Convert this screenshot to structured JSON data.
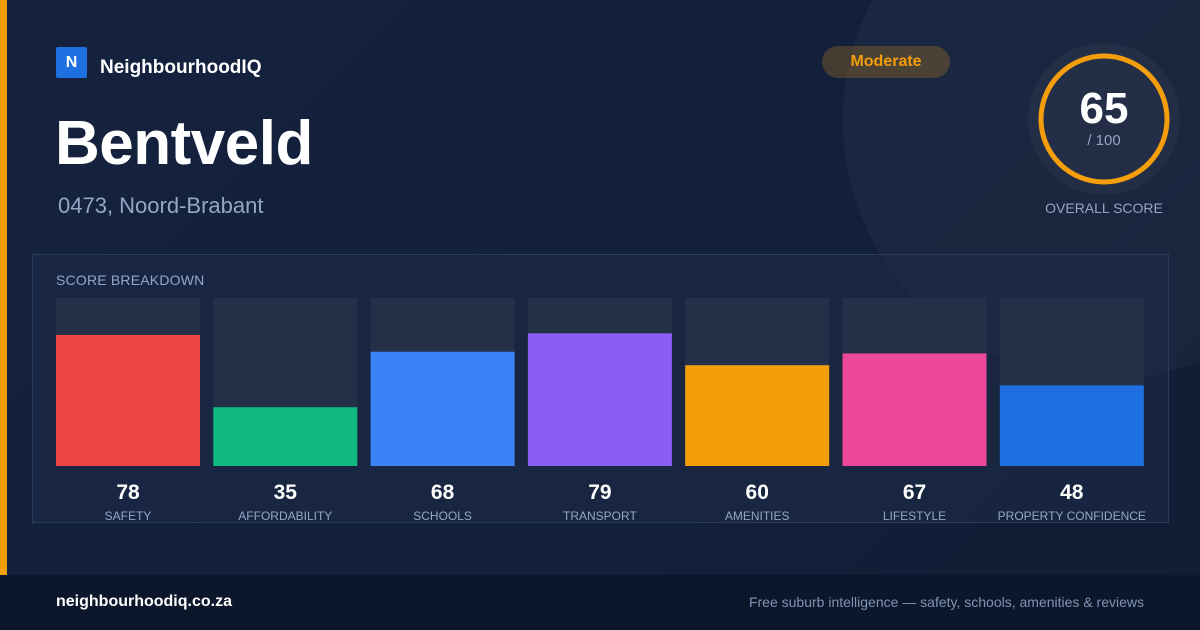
{
  "brand": {
    "logo_letter": "N",
    "name": "NeighbourhoodIQ"
  },
  "suburb": {
    "name": "Bentveld",
    "subtitle": "0473, Noord-Brabant"
  },
  "rating": {
    "label": "Moderate"
  },
  "overall": {
    "score": "65",
    "max_label": "/ 100",
    "caption": "OVERALL SCORE",
    "score_fraction": 0.65
  },
  "panel": {
    "title": "SCORE BREAKDOWN"
  },
  "colors": {
    "accent": "#f59e0b",
    "brand": "#1e6fe0",
    "track": "#233047"
  },
  "chart_data": {
    "type": "bar",
    "title": "SCORE BREAKDOWN",
    "categories": [
      "SAFETY",
      "AFFORDABILITY",
      "SCHOOLS",
      "TRANSPORT",
      "AMENITIES",
      "LIFESTYLE",
      "PROPERTY CONFIDENCE"
    ],
    "values": [
      78,
      35,
      68,
      79,
      60,
      67,
      48
    ],
    "colors": [
      "#ef4444",
      "#10b981",
      "#3b82f6",
      "#8b5cf6",
      "#f59e0b",
      "#ec4899",
      "#1e6fe0"
    ],
    "ylim": [
      0,
      100
    ],
    "grid": false,
    "legend": "none"
  },
  "footer": {
    "url": "neighbourhoodiq.co.za",
    "tagline": "Free suburb intelligence — safety, schools, amenities & reviews"
  }
}
